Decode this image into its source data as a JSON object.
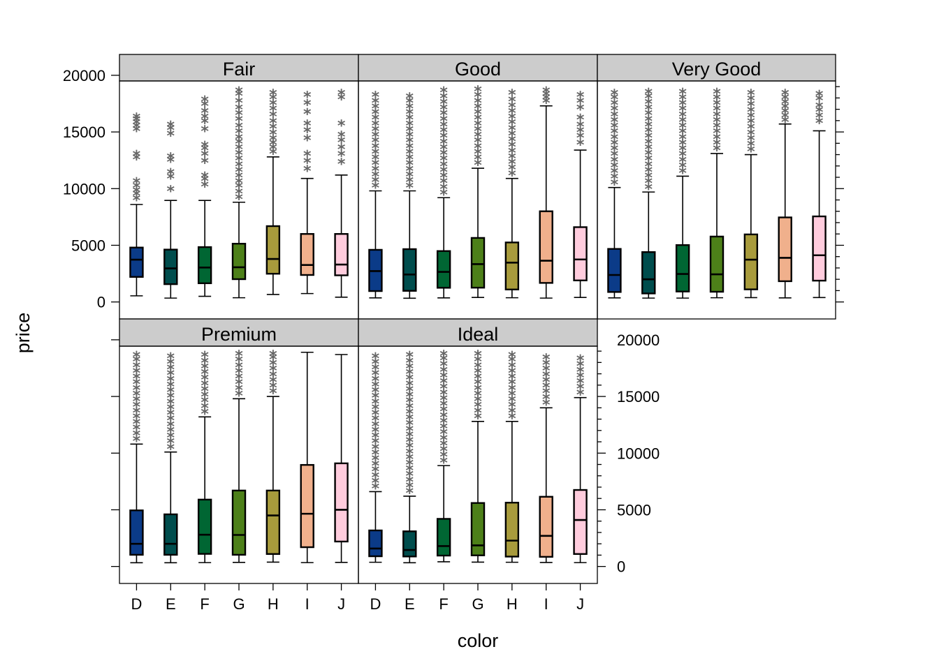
{
  "chart_data": {
    "type": "boxplot",
    "xlabel": "color",
    "ylabel": "price",
    "categories": [
      "D",
      "E",
      "F",
      "G",
      "H",
      "I",
      "J"
    ],
    "ylim": [
      0,
      20000
    ],
    "yticks": [
      0,
      5000,
      10000,
      15000,
      20000
    ],
    "colors": {
      "D": "#0b3b88",
      "E": "#004d4d",
      "F": "#006633",
      "G": "#4d8019",
      "H": "#a89b3c",
      "I": "#f0b08c",
      "J": "#ffccdd"
    },
    "outlier_color": "#666666",
    "panels": [
      {
        "title": "Fair",
        "boxes": [
          {
            "cat": "D",
            "lower": 540,
            "q1": 2210,
            "median": 3730,
            "q3": 4800,
            "upper": 8600,
            "outliers": [
              9000,
              9400,
              9700,
              10100,
              10500,
              12600,
              12900,
              15100,
              15400,
              15700,
              16000,
              16200
            ]
          },
          {
            "cat": "E",
            "lower": 340,
            "q1": 1570,
            "median": 2960,
            "q3": 4620,
            "upper": 8960,
            "outliers": [
              9800,
              10900,
              11300,
              12400,
              12700,
              14700,
              15200,
              15500
            ]
          },
          {
            "cat": "F",
            "lower": 500,
            "q1": 1650,
            "median": 3040,
            "q3": 4840,
            "upper": 8960,
            "outliers": [
              10200,
              10700,
              11000,
              12300,
              12900,
              13400,
              13700,
              15100,
              15800,
              16200,
              16700,
              17300,
              17700
            ]
          },
          {
            "cat": "G",
            "lower": 370,
            "q1": 2010,
            "median": 3060,
            "q3": 5140,
            "upper": 8800,
            "outliers": [
              9100,
              9600,
              10100,
              10500,
              11000,
              11500,
              12000,
              12500,
              13000,
              13500,
              14000,
              14400,
              14900,
              15400,
              16000,
              16500,
              17000,
              17600,
              18200,
              18500
            ]
          },
          {
            "cat": "H",
            "lower": 660,
            "q1": 2490,
            "median": 3790,
            "q3": 6690,
            "upper": 12800,
            "outliers": [
              13100,
              13500,
              13900,
              14300,
              14800,
              15300,
              15800,
              16400,
              16900,
              17400,
              17900,
              18300
            ]
          },
          {
            "cat": "I",
            "lower": 740,
            "q1": 2380,
            "median": 3260,
            "q3": 6000,
            "upper": 10900,
            "outliers": [
              11600,
              12300,
              12900,
              14300,
              15000,
              15600,
              16600,
              17400,
              18100
            ]
          },
          {
            "cat": "J",
            "lower": 420,
            "q1": 2350,
            "median": 3300,
            "q3": 6000,
            "upper": 11200,
            "outliers": [
              12200,
              12900,
              13500,
              14100,
              14600,
              15600,
              17900,
              18300
            ]
          }
        ]
      },
      {
        "title": "Good",
        "boxes": [
          {
            "cat": "D",
            "lower": 360,
            "q1": 960,
            "median": 2720,
            "q3": 4600,
            "upper": 9800,
            "outliers": [
              10100,
              10600,
              11100,
              11600,
              12100,
              12600,
              13100,
              13600,
              14100,
              14600,
              15100,
              15600,
              16100,
              16600,
              17100,
              17600,
              18100
            ]
          },
          {
            "cat": "E",
            "lower": 330,
            "q1": 980,
            "median": 2420,
            "q3": 4660,
            "upper": 9800,
            "outliers": [
              10100,
              10600,
              11100,
              11600,
              12100,
              12600,
              13100,
              13600,
              14100,
              14600,
              15100,
              15600,
              16100,
              16600,
              17100,
              17600,
              18000
            ]
          },
          {
            "cat": "F",
            "lower": 360,
            "q1": 1250,
            "median": 2650,
            "q3": 4490,
            "upper": 9200,
            "outliers": [
              9500,
              10000,
              10500,
              11000,
              11500,
              12000,
              12500,
              13000,
              13500,
              14000,
              14500,
              15000,
              15500,
              16000,
              16500,
              17000,
              17500,
              18000,
              18500
            ]
          },
          {
            "cat": "G",
            "lower": 400,
            "q1": 1260,
            "median": 3340,
            "q3": 5650,
            "upper": 11800,
            "outliers": [
              12100,
              12600,
              13100,
              13600,
              14100,
              14600,
              15100,
              15600,
              16100,
              16600,
              17100,
              17600,
              18100,
              18600
            ]
          },
          {
            "cat": "H",
            "lower": 370,
            "q1": 1100,
            "median": 3470,
            "q3": 5250,
            "upper": 10900,
            "outliers": [
              11200,
              11700,
              12200,
              12700,
              13200,
              13700,
              14200,
              14700,
              15200,
              15700,
              16200,
              16700,
              17200,
              17700,
              18300
            ]
          },
          {
            "cat": "I",
            "lower": 340,
            "q1": 1680,
            "median": 3640,
            "q3": 8000,
            "upper": 17300,
            "outliers": [
              17600,
              17900,
              18200,
              18500
            ]
          },
          {
            "cat": "J",
            "lower": 400,
            "q1": 1900,
            "median": 3750,
            "q3": 6600,
            "upper": 13400,
            "outliers": [
              13900,
              14500,
              15000,
              15500,
              16100,
              17000,
              17600,
              18100
            ]
          }
        ]
      },
      {
        "title": "Very Good",
        "boxes": [
          {
            "cat": "D",
            "lower": 360,
            "q1": 880,
            "median": 2380,
            "q3": 4680,
            "upper": 10100,
            "outliers": [
              10400,
              10900,
              11400,
              11900,
              12400,
              12900,
              13400,
              13900,
              14400,
              14900,
              15400,
              15900,
              16400,
              16900,
              17400,
              17900,
              18300
            ]
          },
          {
            "cat": "E",
            "lower": 340,
            "q1": 750,
            "median": 2000,
            "q3": 4400,
            "upper": 9700,
            "outliers": [
              10000,
              10500,
              11000,
              11500,
              12000,
              12500,
              13000,
              13500,
              14000,
              14500,
              15000,
              15500,
              16000,
              16500,
              17000,
              17500,
              18000,
              18400
            ]
          },
          {
            "cat": "F",
            "lower": 340,
            "q1": 920,
            "median": 2470,
            "q3": 5020,
            "upper": 11100,
            "outliers": [
              11400,
              11900,
              12400,
              12900,
              13400,
              13900,
              14400,
              14900,
              15400,
              15900,
              16400,
              16900,
              17400,
              17900,
              18400
            ]
          },
          {
            "cat": "G",
            "lower": 370,
            "q1": 900,
            "median": 2440,
            "q3": 5770,
            "upper": 13100,
            "outliers": [
              13400,
              13900,
              14400,
              14900,
              15400,
              15900,
              16400,
              16900,
              17400,
              17900,
              18400
            ]
          },
          {
            "cat": "H",
            "lower": 380,
            "q1": 1110,
            "median": 3730,
            "q3": 5960,
            "upper": 13000,
            "outliers": [
              13300,
              13800,
              14300,
              14800,
              15300,
              15800,
              16300,
              16800,
              17300,
              17800,
              18300
            ]
          },
          {
            "cat": "I",
            "lower": 360,
            "q1": 1830,
            "median": 3890,
            "q3": 7460,
            "upper": 15700,
            "outliers": [
              15900,
              16300,
              16700,
              17100,
              17500,
              17900,
              18300
            ]
          },
          {
            "cat": "J",
            "lower": 390,
            "q1": 1880,
            "median": 4120,
            "q3": 7550,
            "upper": 15100,
            "outliers": [
              15800,
              16300,
              16800,
              17200,
              17800,
              18200
            ]
          }
        ]
      },
      {
        "title": "Premium",
        "boxes": [
          {
            "cat": "D",
            "lower": 330,
            "q1": 1030,
            "median": 2000,
            "q3": 4950,
            "upper": 10800,
            "outliers": [
              11100,
              11600,
              12100,
              12600,
              13100,
              13600,
              14100,
              14600,
              15100,
              15600,
              16100,
              16600,
              17100,
              17600,
              18100,
              18500
            ]
          },
          {
            "cat": "E",
            "lower": 330,
            "q1": 1030,
            "median": 2000,
            "q3": 4600,
            "upper": 10100,
            "outliers": [
              10400,
              10900,
              11400,
              11900,
              12400,
              12900,
              13400,
              13900,
              14400,
              14900,
              15400,
              15900,
              16400,
              16900,
              17400,
              17900,
              18400
            ]
          },
          {
            "cat": "F",
            "lower": 340,
            "q1": 1110,
            "median": 2800,
            "q3": 5900,
            "upper": 13200,
            "outliers": [
              13500,
              14000,
              14500,
              15000,
              15500,
              16000,
              16500,
              17000,
              17500,
              18000,
              18500
            ]
          },
          {
            "cat": "G",
            "lower": 360,
            "q1": 1030,
            "median": 2780,
            "q3": 6700,
            "upper": 14800,
            "outliers": [
              15100,
              15600,
              16100,
              16600,
              17100,
              17600,
              18100,
              18600
            ]
          },
          {
            "cat": "H",
            "lower": 380,
            "q1": 1100,
            "median": 4500,
            "q3": 6700,
            "upper": 15000,
            "outliers": [
              15300,
              15800,
              16300,
              16800,
              17300,
              17800,
              18300,
              18600
            ]
          },
          {
            "cat": "I",
            "lower": 340,
            "q1": 1700,
            "median": 4650,
            "q3": 8960,
            "upper": 18900,
            "outliers": []
          },
          {
            "cat": "J",
            "lower": 360,
            "q1": 2200,
            "median": 5000,
            "q3": 9100,
            "upper": 18700,
            "outliers": []
          }
        ]
      },
      {
        "title": "Ideal",
        "boxes": [
          {
            "cat": "D",
            "lower": 370,
            "q1": 900,
            "median": 1580,
            "q3": 3180,
            "upper": 6600,
            "outliers": [
              6900,
              7400,
              7900,
              8400,
              8900,
              9400,
              9900,
              10400,
              10900,
              11400,
              11900,
              12400,
              12900,
              13400,
              13900,
              14400,
              14900,
              15400,
              15900,
              16400,
              16900,
              17400,
              17900,
              18400
            ]
          },
          {
            "cat": "E",
            "lower": 330,
            "q1": 880,
            "median": 1450,
            "q3": 3100,
            "upper": 6200,
            "outliers": [
              6500,
              7000,
              7500,
              8000,
              8500,
              9000,
              9500,
              10000,
              10500,
              11000,
              11500,
              12000,
              12500,
              13000,
              13500,
              14000,
              14500,
              15000,
              15500,
              16000,
              16500,
              17000,
              17500,
              18000,
              18500
            ]
          },
          {
            "cat": "F",
            "lower": 410,
            "q1": 960,
            "median": 1800,
            "q3": 4200,
            "upper": 8900,
            "outliers": [
              9200,
              9700,
              10200,
              10700,
              11200,
              11700,
              12200,
              12700,
              13200,
              13700,
              14200,
              14700,
              15200,
              15700,
              16200,
              16700,
              17200,
              17700,
              18200,
              18600
            ]
          },
          {
            "cat": "G",
            "lower": 380,
            "q1": 980,
            "median": 1860,
            "q3": 5600,
            "upper": 12800,
            "outliers": [
              13100,
              13600,
              14100,
              14600,
              15100,
              15600,
              16100,
              16600,
              17100,
              17600,
              18100,
              18600
            ]
          },
          {
            "cat": "H",
            "lower": 370,
            "q1": 870,
            "median": 2280,
            "q3": 5630,
            "upper": 12800,
            "outliers": [
              13100,
              13600,
              14100,
              14600,
              15100,
              15600,
              16100,
              16600,
              17100,
              17600,
              18100,
              18500
            ]
          },
          {
            "cat": "I",
            "lower": 350,
            "q1": 850,
            "median": 2700,
            "q3": 6150,
            "upper": 14000,
            "outliers": [
              14300,
              14800,
              15300,
              15800,
              16300,
              16800,
              17300,
              17800,
              18300
            ]
          },
          {
            "cat": "J",
            "lower": 340,
            "q1": 1100,
            "median": 4100,
            "q3": 6750,
            "upper": 14900,
            "outliers": [
              15200,
              15700,
              16200,
              16700,
              17200,
              17700,
              18200
            ]
          }
        ]
      }
    ]
  }
}
